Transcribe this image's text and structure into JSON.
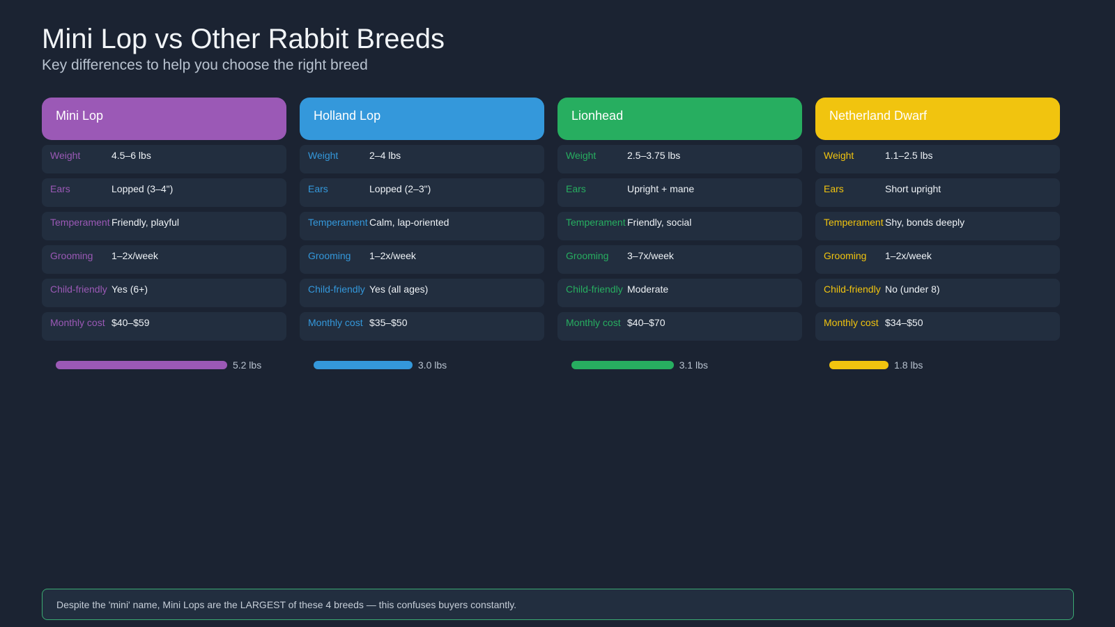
{
  "title": "Mini Lop vs Other Rabbit Breeds",
  "subtitle": "Key differences to help you choose the right breed",
  "attribute_labels": [
    "Weight",
    "Ears",
    "Temperament",
    "Grooming",
    "Child-friendly",
    "Monthly cost"
  ],
  "breeds": [
    {
      "name": "Mini Lop",
      "color": "#9b59b6",
      "values": [
        "4.5–6 lbs",
        "Lopped (3–4\")",
        "Friendly, playful",
        "1–2x/week",
        "Yes (6+)",
        "$40–$59"
      ],
      "avg_weight": 5.2,
      "avg_weight_label": "5.2 lbs"
    },
    {
      "name": "Holland Lop",
      "color": "#3498db",
      "values": [
        "2–4 lbs",
        "Lopped (2–3\")",
        "Calm, lap-oriented",
        "1–2x/week",
        "Yes (all ages)",
        "$35–$50"
      ],
      "avg_weight": 3.0,
      "avg_weight_label": "3.0 lbs"
    },
    {
      "name": "Lionhead",
      "color": "#27ae60",
      "values": [
        "2.5–3.75 lbs",
        "Upright + mane",
        "Friendly, social",
        "3–7x/week",
        "Moderate",
        "$40–$70"
      ],
      "avg_weight": 3.1,
      "avg_weight_label": "3.1 lbs"
    },
    {
      "name": "Netherland Dwarf",
      "color": "#f1c40f",
      "values": [
        "1.1–2.5 lbs",
        "Short upright",
        "Shy, bonds deeply",
        "1–2x/week",
        "No (under 8)",
        "$34–$50"
      ],
      "avg_weight": 1.8,
      "avg_weight_label": "1.8 lbs"
    }
  ],
  "footer_note": "Despite the 'mini' name, Mini Lops are the LARGEST of these 4 breeds — this confuses buyers constantly."
}
